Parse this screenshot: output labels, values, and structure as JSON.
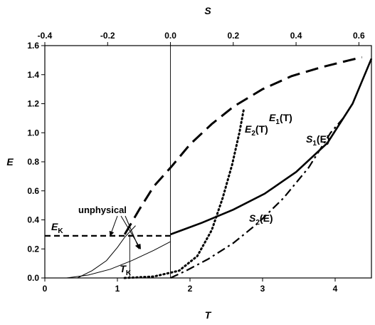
{
  "chart_data": {
    "type": "line",
    "xlabel": "T",
    "x2label": "S",
    "ylabel": "E",
    "xlim": [
      0,
      4.5
    ],
    "x2lim": [
      -0.4,
      0.64
    ],
    "ylim": [
      0,
      1.6
    ],
    "x_ticks": [
      "0",
      "1",
      "2",
      "3",
      "4"
    ],
    "x2_ticks": [
      "-0.4",
      "-0.2",
      "0.0",
      "0.2",
      "0.4",
      "0.6"
    ],
    "y_ticks": [
      "0.0",
      "0.2",
      "0.4",
      "0.6",
      "0.8",
      "1.0",
      "1.2",
      "1.4",
      "1.6"
    ],
    "series": [
      {
        "name": "E1(T)",
        "label_main": "E",
        "label_sub": "1",
        "label_arg": "(T)",
        "style": "long-dash",
        "axis": "T",
        "points": [
          [
            1.1,
            0.3
          ],
          [
            1.3,
            0.47
          ],
          [
            1.5,
            0.63
          ],
          [
            1.75,
            0.77
          ],
          [
            2.0,
            0.92
          ],
          [
            2.3,
            1.06
          ],
          [
            2.6,
            1.18
          ],
          [
            3.0,
            1.3
          ],
          [
            3.4,
            1.39
          ],
          [
            3.8,
            1.45
          ],
          [
            4.2,
            1.5
          ],
          [
            4.37,
            1.52
          ]
        ]
      },
      {
        "name": "S1(E)",
        "label_main": "S",
        "label_sub": "1",
        "label_arg": "(E)",
        "style": "solid",
        "axis": "S",
        "points": [
          [
            0.0,
            0.3
          ],
          [
            0.1,
            0.38
          ],
          [
            0.2,
            0.47
          ],
          [
            0.3,
            0.58
          ],
          [
            0.4,
            0.73
          ],
          [
            0.5,
            0.93
          ],
          [
            0.58,
            1.2
          ],
          [
            0.64,
            1.51
          ]
        ]
      },
      {
        "name": "E2(T)",
        "label_main": "E",
        "label_sub": "2",
        "label_arg": "(T)",
        "style": "dotted",
        "axis": "T",
        "points": [
          [
            1.1,
            0.0
          ],
          [
            1.5,
            0.01
          ],
          [
            1.85,
            0.05
          ],
          [
            2.1,
            0.15
          ],
          [
            2.3,
            0.33
          ],
          [
            2.45,
            0.55
          ],
          [
            2.58,
            0.78
          ],
          [
            2.68,
            1.0
          ],
          [
            2.74,
            1.16
          ]
        ]
      },
      {
        "name": "S2(E)",
        "label_main": "S",
        "label_sub": "2",
        "label_arg": "(E)",
        "style": "dash-dot",
        "axis": "S",
        "points": [
          [
            0.0,
            0.0
          ],
          [
            0.05,
            0.05
          ],
          [
            0.12,
            0.13
          ],
          [
            0.2,
            0.24
          ],
          [
            0.28,
            0.38
          ],
          [
            0.36,
            0.55
          ],
          [
            0.44,
            0.76
          ],
          [
            0.51,
            1.0
          ],
          [
            0.55,
            1.1
          ]
        ]
      },
      {
        "name": "E_K",
        "label_main": "E",
        "label_sub": "K",
        "style": "short-dash",
        "axis": "T",
        "points": [
          [
            0.0,
            0.29
          ],
          [
            1.73,
            0.29
          ]
        ]
      },
      {
        "name": "unphysical-branch-lower",
        "style": "thin",
        "axis": "T",
        "points": [
          [
            0.3,
            0.0
          ],
          [
            0.6,
            0.02
          ],
          [
            0.9,
            0.06
          ],
          [
            1.2,
            0.12
          ],
          [
            1.5,
            0.19
          ],
          [
            1.73,
            0.25
          ]
        ]
      },
      {
        "name": "unphysical-branch-upper",
        "style": "thin",
        "axis": "T",
        "points": [
          [
            0.45,
            0.0
          ],
          [
            0.65,
            0.05
          ],
          [
            0.85,
            0.12
          ],
          [
            1.0,
            0.21
          ],
          [
            1.1,
            0.28
          ],
          [
            1.25,
            0.36
          ]
        ]
      }
    ],
    "reference_lines": [
      {
        "axis": "S",
        "value": 0.0,
        "style": "thin-vertical"
      },
      {
        "axis": "T",
        "value": 1.17,
        "style": "thin-vertical",
        "label_main": "T",
        "label_sub": "K"
      }
    ],
    "annotation": {
      "text": "unphysical",
      "arrow_targets": [
        [
          0.9,
          0.29
        ],
        [
          1.32,
          0.2
        ],
        [
          1.3,
          0.2
        ]
      ]
    },
    "grid": false,
    "legend": "none"
  }
}
